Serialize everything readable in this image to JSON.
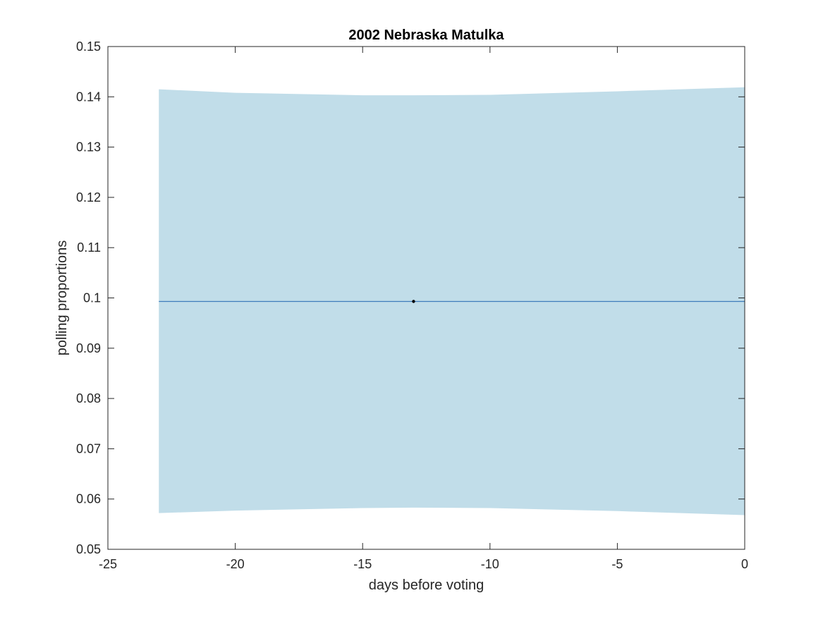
{
  "chart_data": {
    "type": "line",
    "title": "2002 Nebraska Matulka",
    "xlabel": "days before voting",
    "ylabel": "polling proportions",
    "xlim": [
      -25,
      0
    ],
    "ylim": [
      0.05,
      0.15
    ],
    "x_ticks": [
      -25,
      -20,
      -15,
      -10,
      -5,
      0
    ],
    "x_tick_labels": [
      "-25",
      "-20",
      "-15",
      "-10",
      "-5",
      "0"
    ],
    "y_ticks": [
      0.05,
      0.06,
      0.07,
      0.08,
      0.09,
      0.1,
      0.11,
      0.12,
      0.13,
      0.14,
      0.15
    ],
    "y_tick_labels": [
      "0.05",
      "0.06",
      "0.07",
      "0.08",
      "0.09",
      "0.1",
      "0.11",
      "0.12",
      "0.13",
      "0.14",
      "0.15"
    ],
    "grid": false,
    "band": {
      "x": [
        -23,
        -20,
        -15,
        -13,
        -10,
        -5,
        0
      ],
      "upper": [
        0.1415,
        0.1408,
        0.1403,
        0.1403,
        0.1404,
        0.1411,
        0.1419
      ],
      "lower": [
        0.0572,
        0.0577,
        0.0582,
        0.0583,
        0.0582,
        0.0576,
        0.0568
      ],
      "color": "#c1dde9"
    },
    "series": [
      {
        "x": [
          -23,
          0
        ],
        "values": [
          0.0993,
          0.0993
        ],
        "color": "#3e7dbc"
      }
    ],
    "points": {
      "x": [
        -13
      ],
      "values": [
        0.0993
      ],
      "color": "#000000"
    }
  }
}
